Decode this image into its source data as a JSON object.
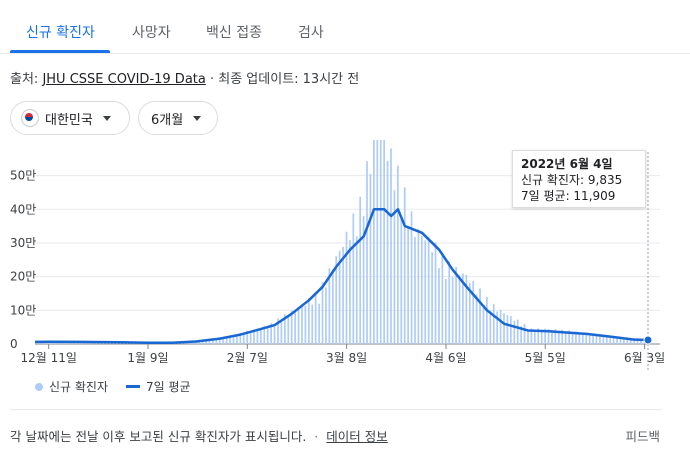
{
  "tabs": [
    {
      "label": "신규 확진자",
      "active": true
    },
    {
      "label": "사망자"
    },
    {
      "label": "백신 접종"
    },
    {
      "label": "검사"
    }
  ],
  "source": {
    "prefix": "출처: ",
    "link": "JHU CSSE COVID-19 Data",
    "suffix": " · 최종 업데이트: 13시간 전"
  },
  "filters": {
    "country": "대한민국",
    "period": "6개월",
    "flag_icon": "south-korea-flag-icon"
  },
  "tooltip": {
    "date": "2022년 6월 4일",
    "line1": "신규 확진자: 9,835",
    "line2": "7일 평균: 11,909"
  },
  "legend": {
    "bars": "신규 확진자",
    "line": "7일 평균"
  },
  "footer": {
    "note": "각 날짜에는 전날 이후 보고된 신규 확진자가 표시됩니다.",
    "sep": "·",
    "link": "데이터 정보",
    "feedback": "피드백"
  },
  "colors": {
    "bar": "#aecbfa",
    "line": "#1967d2",
    "accent": "#1a73e8"
  },
  "chart_data": {
    "type": "bar",
    "title": "",
    "y_ticks": [
      "0",
      "10만",
      "20만",
      "30만",
      "40만",
      "50만"
    ],
    "ylim": [
      0,
      570000
    ],
    "x_ticks": [
      "12월 11일",
      "1월 9일",
      "2월 7일",
      "3월 8일",
      "4월 6일",
      "5월 5일",
      "6월 3일"
    ],
    "x_range": [
      "2021-12-07",
      "2022-06-04"
    ],
    "grid": true,
    "series": [
      {
        "name": "신규 확진자",
        "type": "bar",
        "points": [
          [
            "2021-12-11",
            7000
          ],
          [
            "2021-12-25",
            6000
          ],
          [
            "2022-01-09",
            3400
          ],
          [
            "2022-01-20",
            6600
          ],
          [
            "2022-01-27",
            14500
          ],
          [
            "2022-02-03",
            22900
          ],
          [
            "2022-02-07",
            35000
          ],
          [
            "2022-02-14",
            54000
          ],
          [
            "2022-02-21",
            95000
          ],
          [
            "2022-02-28",
            140000
          ],
          [
            "2022-03-03",
            200000
          ],
          [
            "2022-03-08",
            300000
          ],
          [
            "2022-03-12",
            380000
          ],
          [
            "2022-03-17",
            620000
          ],
          [
            "2022-03-22",
            490000
          ],
          [
            "2022-03-28",
            320000
          ],
          [
            "2022-04-02",
            280000
          ],
          [
            "2022-04-06",
            220000
          ],
          [
            "2022-04-12",
            190000
          ],
          [
            "2022-04-19",
            110000
          ],
          [
            "2022-04-26",
            70000
          ],
          [
            "2022-05-01",
            40000
          ],
          [
            "2022-05-05",
            42000
          ],
          [
            "2022-05-12",
            35000
          ],
          [
            "2022-05-19",
            27000
          ],
          [
            "2022-05-26",
            18000
          ],
          [
            "2022-06-01",
            13000
          ],
          [
            "2022-06-04",
            9835
          ]
        ]
      },
      {
        "name": "7일 평균",
        "type": "line",
        "points": [
          [
            "2021-12-07",
            6200
          ],
          [
            "2021-12-11",
            6500
          ],
          [
            "2021-12-20",
            6200
          ],
          [
            "2022-01-01",
            5000
          ],
          [
            "2022-01-09",
            3500
          ],
          [
            "2022-01-16",
            4000
          ],
          [
            "2022-01-23",
            7500
          ],
          [
            "2022-01-30",
            16000
          ],
          [
            "2022-02-05",
            28000
          ],
          [
            "2022-02-10",
            42000
          ],
          [
            "2022-02-15",
            56000
          ],
          [
            "2022-02-20",
            90000
          ],
          [
            "2022-02-25",
            130000
          ],
          [
            "2022-03-01",
            170000
          ],
          [
            "2022-03-05",
            230000
          ],
          [
            "2022-03-09",
            280000
          ],
          [
            "2022-03-13",
            320000
          ],
          [
            "2022-03-16",
            400000
          ],
          [
            "2022-03-19",
            400000
          ],
          [
            "2022-03-21",
            380000
          ],
          [
            "2022-03-23",
            400000
          ],
          [
            "2022-03-25",
            350000
          ],
          [
            "2022-03-30",
            330000
          ],
          [
            "2022-04-04",
            280000
          ],
          [
            "2022-04-08",
            220000
          ],
          [
            "2022-04-12",
            170000
          ],
          [
            "2022-04-18",
            100000
          ],
          [
            "2022-04-23",
            60000
          ],
          [
            "2022-04-30",
            40000
          ],
          [
            "2022-05-06",
            38000
          ],
          [
            "2022-05-10",
            35000
          ],
          [
            "2022-05-17",
            30000
          ],
          [
            "2022-05-24",
            22000
          ],
          [
            "2022-05-31",
            13000
          ],
          [
            "2022-06-04",
            11909
          ]
        ]
      }
    ]
  }
}
